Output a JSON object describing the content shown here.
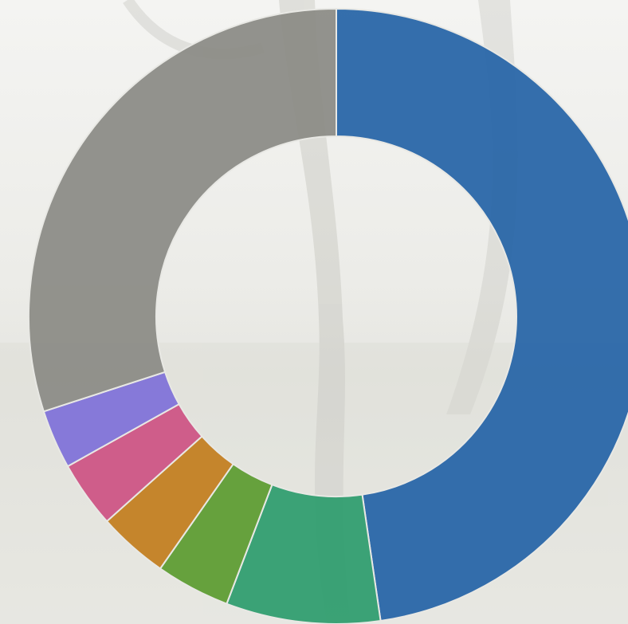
{
  "chart_data": {
    "type": "pie",
    "donut": true,
    "values": [
      47.7,
      8.1,
      3.9,
      3.7,
      3.5,
      3.1,
      30
    ],
    "colors": [
      "#2463a6",
      "#2d9c6d",
      "#5b9b2f",
      "#c27d1c",
      "#cd5182",
      "#7e70d8",
      "#8a8a84"
    ]
  }
}
